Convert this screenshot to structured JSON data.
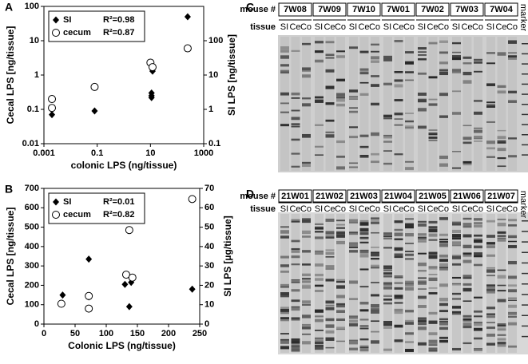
{
  "chart_data": [
    {
      "panel": "A",
      "type": "scatter",
      "xlabel": "colonic LPS (ng/tissue)",
      "ylabel": "Cecal LPS [ng/tissue]",
      "y2label": "SI LPS [ng/tissue]",
      "xlog": true,
      "ylog": true,
      "xlim": [
        0.001,
        1000
      ],
      "xticks": [
        0.001,
        0.1,
        10,
        1000
      ],
      "ylim": [
        0.01,
        100
      ],
      "yticks": [
        0.01,
        0.1,
        1,
        10,
        100
      ],
      "y2lim": [
        0.1,
        1000
      ],
      "y2ticks": [
        0.1,
        1,
        10,
        100
      ],
      "legend": "top-left",
      "series": [
        {
          "name": "SI",
          "stat": "R²=0.98",
          "marker": "diamond",
          "color": "#000000",
          "axis": "y2",
          "x": [
            0.002,
            0.002,
            0.08,
            11,
            11,
            11,
            12,
            250
          ],
          "values": [
            0.7,
            1,
            0.9,
            3,
            2.5,
            2.2,
            13,
            500
          ]
        },
        {
          "name": "cecum",
          "stat": "R²=0.87",
          "marker": "circle",
          "color": "#000000",
          "x": [
            0.002,
            0.002,
            0.08,
            10,
            12,
            250
          ],
          "values": [
            0.2,
            0.11,
            0.45,
            2.3,
            1.7,
            6
          ]
        }
      ]
    },
    {
      "panel": "B",
      "type": "scatter",
      "xlabel": "Colonic LPS (ng/tissue)",
      "ylabel": "Cecal LPS [ng/tissue]",
      "y2label": "SI LPS [µg/tissue]",
      "xlog": false,
      "ylog": false,
      "xlim": [
        0,
        250
      ],
      "xticks": [
        0,
        50,
        100,
        150,
        200,
        250
      ],
      "ylim": [
        0,
        700
      ],
      "yticks": [
        0,
        100,
        200,
        300,
        400,
        500,
        600,
        700
      ],
      "y2lim": [
        0,
        70
      ],
      "y2ticks": [
        0,
        10,
        20,
        30,
        40,
        50,
        60,
        70
      ],
      "legend": "top-left",
      "series": [
        {
          "name": "SI",
          "stat": "R²=0.01",
          "marker": "diamond",
          "color": "#000000",
          "axis": "y2",
          "x": [
            30,
            72,
            72,
            130,
            137,
            140,
            238
          ],
          "values": [
            15,
            33.5,
            14,
            20.5,
            9,
            21.5,
            18
          ]
        },
        {
          "name": "cecum",
          "stat": "R²=0.82",
          "marker": "circle",
          "color": "#000000",
          "x": [
            28,
            72,
            72,
            132,
            137,
            142,
            238
          ],
          "values": [
            105,
            145,
            80,
            255,
            485,
            240,
            645
          ]
        }
      ]
    }
  ],
  "gels": [
    {
      "panel": "C",
      "mouse_label": "mouse #",
      "tissue_label": "tissue",
      "marker": "marker",
      "mice": [
        "7W08",
        "7W09",
        "7W10",
        "7W01",
        "7W02",
        "7W03",
        "7W04"
      ],
      "tissues": [
        "SI",
        "Ce",
        "Co"
      ]
    },
    {
      "panel": "D",
      "mouse_label": "mouse #",
      "tissue_label": "tissue",
      "marker": "marker",
      "mice": [
        "21W01",
        "21W02",
        "21W03",
        "21W04",
        "21W05",
        "21W06",
        "21W07"
      ],
      "tissues": [
        "SI",
        "Ce",
        "Co"
      ]
    }
  ]
}
